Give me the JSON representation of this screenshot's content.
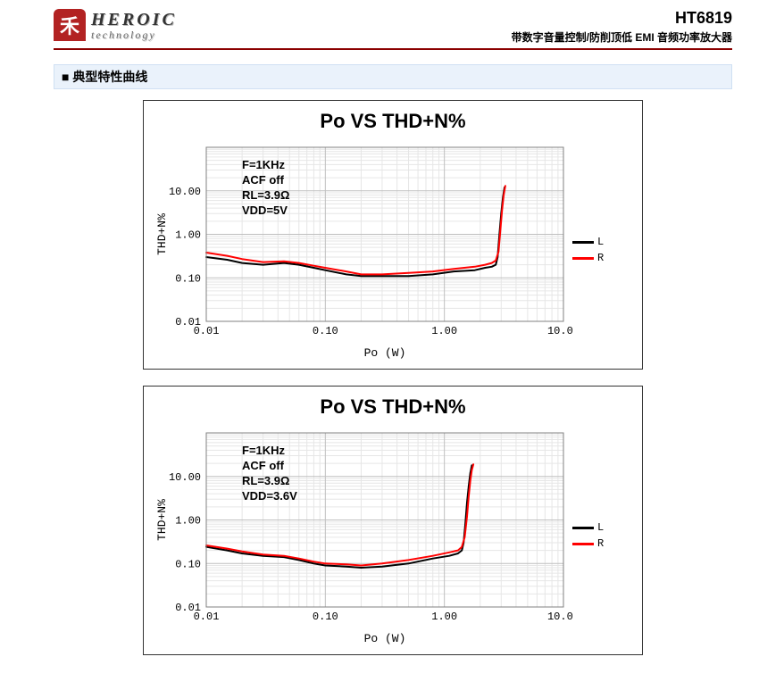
{
  "header": {
    "logo_char": "禾",
    "logo_main": "HEROIC",
    "logo_sub": "technology",
    "part_no": "HT6819",
    "part_desc": "带数字音量控制/防削顶低 EMI 音频功率放大器"
  },
  "section_title": "典型特性曲线",
  "charts": [
    {
      "title": "Po VS THD+N%",
      "xlabel": "Po (W)",
      "ylabel": "THD+N%",
      "x_log_range": [
        -2,
        1
      ],
      "y_log_range": [
        -2,
        2
      ],
      "x_ticks": [
        0.01,
        0.1,
        1.0,
        10.0
      ],
      "y_ticks": [
        0.01,
        0.1,
        1.0,
        10.0
      ],
      "x_tick_fmt": "0.00",
      "y_tick_fmt": "0.00",
      "grid_major_color": "#bfbfbf",
      "grid_minor_color": "#e6e6e6",
      "background": "#ffffff",
      "conditions": [
        "F=1KHz",
        "ACF  off",
        "RL=3.9Ω",
        "VDD=5V"
      ],
      "legend": [
        {
          "label": "L",
          "color": "#000000"
        },
        {
          "label": "R",
          "color": "#ff0000"
        }
      ],
      "series": [
        {
          "color": "#000000",
          "width": 2,
          "points": [
            [
              0.01,
              0.3
            ],
            [
              0.015,
              0.26
            ],
            [
              0.02,
              0.22
            ],
            [
              0.03,
              0.2
            ],
            [
              0.045,
              0.22
            ],
            [
              0.06,
              0.2
            ],
            [
              0.08,
              0.17
            ],
            [
              0.1,
              0.15
            ],
            [
              0.15,
              0.12
            ],
            [
              0.2,
              0.11
            ],
            [
              0.3,
              0.11
            ],
            [
              0.5,
              0.11
            ],
            [
              0.8,
              0.12
            ],
            [
              1.2,
              0.14
            ],
            [
              1.8,
              0.15
            ],
            [
              2.2,
              0.17
            ],
            [
              2.5,
              0.18
            ],
            [
              2.7,
              0.2
            ],
            [
              2.8,
              0.3
            ],
            [
              2.9,
              1.0
            ],
            [
              3.0,
              3.0
            ],
            [
              3.1,
              7.0
            ],
            [
              3.2,
              12.0
            ]
          ]
        },
        {
          "color": "#ff0000",
          "width": 2,
          "points": [
            [
              0.01,
              0.38
            ],
            [
              0.015,
              0.32
            ],
            [
              0.02,
              0.27
            ],
            [
              0.03,
              0.23
            ],
            [
              0.045,
              0.24
            ],
            [
              0.06,
              0.22
            ],
            [
              0.08,
              0.19
            ],
            [
              0.1,
              0.17
            ],
            [
              0.15,
              0.14
            ],
            [
              0.2,
              0.12
            ],
            [
              0.3,
              0.12
            ],
            [
              0.5,
              0.13
            ],
            [
              0.8,
              0.14
            ],
            [
              1.2,
              0.16
            ],
            [
              1.8,
              0.18
            ],
            [
              2.2,
              0.2
            ],
            [
              2.5,
              0.22
            ],
            [
              2.7,
              0.25
            ],
            [
              2.85,
              0.4
            ],
            [
              2.95,
              1.2
            ],
            [
              3.05,
              3.5
            ],
            [
              3.15,
              8.0
            ],
            [
              3.25,
              13.0
            ]
          ]
        }
      ]
    },
    {
      "title": "Po VS THD+N%",
      "xlabel": "Po (W)",
      "ylabel": "THD+N%",
      "x_log_range": [
        -2,
        1
      ],
      "y_log_range": [
        -2,
        2
      ],
      "x_ticks": [
        0.01,
        0.1,
        1.0,
        10.0
      ],
      "y_ticks": [
        0.01,
        0.1,
        1.0,
        10.0
      ],
      "x_tick_fmt": "0.00",
      "y_tick_fmt": "0.00",
      "grid_major_color": "#bfbfbf",
      "grid_minor_color": "#e6e6e6",
      "background": "#ffffff",
      "conditions": [
        "F=1KHz",
        "ACF  off",
        "RL=3.9Ω",
        "VDD=3.6V"
      ],
      "legend": [
        {
          "label": "L",
          "color": "#000000"
        },
        {
          "label": "R",
          "color": "#ff0000"
        }
      ],
      "series": [
        {
          "color": "#000000",
          "width": 2,
          "points": [
            [
              0.01,
              0.24
            ],
            [
              0.015,
              0.2
            ],
            [
              0.02,
              0.17
            ],
            [
              0.03,
              0.15
            ],
            [
              0.045,
              0.14
            ],
            [
              0.06,
              0.12
            ],
            [
              0.08,
              0.1
            ],
            [
              0.1,
              0.09
            ],
            [
              0.15,
              0.085
            ],
            [
              0.2,
              0.08
            ],
            [
              0.3,
              0.085
            ],
            [
              0.5,
              0.1
            ],
            [
              0.8,
              0.13
            ],
            [
              1.1,
              0.15
            ],
            [
              1.3,
              0.17
            ],
            [
              1.4,
              0.2
            ],
            [
              1.45,
              0.3
            ],
            [
              1.5,
              0.8
            ],
            [
              1.55,
              2.5
            ],
            [
              1.6,
              6.0
            ],
            [
              1.65,
              12.0
            ],
            [
              1.7,
              18.0
            ]
          ]
        },
        {
          "color": "#ff0000",
          "width": 2,
          "points": [
            [
              0.01,
              0.26
            ],
            [
              0.015,
              0.22
            ],
            [
              0.02,
              0.19
            ],
            [
              0.03,
              0.16
            ],
            [
              0.045,
              0.15
            ],
            [
              0.06,
              0.13
            ],
            [
              0.08,
              0.11
            ],
            [
              0.1,
              0.1
            ],
            [
              0.15,
              0.095
            ],
            [
              0.2,
              0.09
            ],
            [
              0.3,
              0.1
            ],
            [
              0.5,
              0.12
            ],
            [
              0.8,
              0.15
            ],
            [
              1.1,
              0.18
            ],
            [
              1.3,
              0.2
            ],
            [
              1.4,
              0.24
            ],
            [
              1.48,
              0.4
            ],
            [
              1.55,
              1.2
            ],
            [
              1.6,
              3.5
            ],
            [
              1.65,
              8.0
            ],
            [
              1.7,
              14.0
            ],
            [
              1.75,
              19.0
            ]
          ]
        }
      ]
    }
  ]
}
